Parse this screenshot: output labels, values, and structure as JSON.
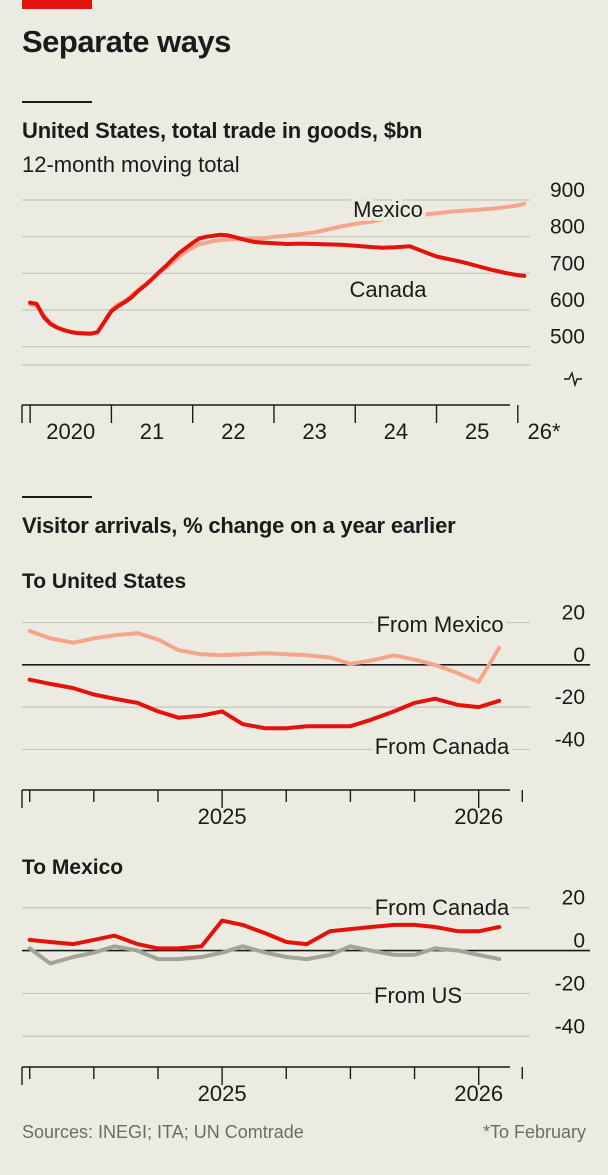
{
  "title": "Separate ways",
  "source": "Sources: INEGI; ITA; UN Comtrade",
  "footnote": "*To February",
  "colors": {
    "red": "#e3120b",
    "pink": "#f4a58a",
    "grey": "#a3a39a",
    "brand": "#e3120b"
  },
  "chart_data": [
    {
      "type": "line",
      "title": "United States, total trade in goods, $bn",
      "subtitle": "12-month moving total",
      "x_ticks": [
        "2020",
        "21",
        "22",
        "23",
        "24",
        "25",
        "26*"
      ],
      "ylim": [
        450,
        900
      ],
      "y_ticks": [
        500,
        600,
        700,
        800,
        900
      ],
      "axis_break": true,
      "series": [
        {
          "name": "Mexico",
          "color": "#f4a58a",
          "x": [
            2020.0,
            2020.08,
            2020.17,
            2020.25,
            2020.33,
            2020.42,
            2020.5,
            2020.58,
            2020.67,
            2020.75,
            2020.83,
            2020.92,
            2021.0,
            2021.08,
            2021.17,
            2021.25,
            2021.33,
            2021.42,
            2021.5,
            2021.58,
            2021.67,
            2021.75,
            2021.83,
            2021.92,
            2022.0,
            2022.08,
            2022.17,
            2022.25,
            2022.33,
            2022.42,
            2022.5,
            2022.58,
            2022.67,
            2022.75,
            2022.83,
            2022.92,
            2023.0,
            2023.17,
            2023.33,
            2023.5,
            2023.67,
            2023.83,
            2024.0,
            2024.17,
            2024.33,
            2024.5,
            2024.67,
            2024.83,
            2025.0,
            2025.17,
            2025.33,
            2025.5,
            2025.67,
            2025.83,
            2026.0,
            2026.08
          ],
          "y": [
            615,
            612,
            585,
            565,
            553,
            545,
            540,
            538,
            537,
            537,
            538,
            570,
            600,
            615,
            625,
            640,
            655,
            670,
            685,
            700,
            715,
            730,
            745,
            760,
            770,
            780,
            783,
            788,
            790,
            792,
            793,
            793,
            793,
            794,
            795,
            797,
            800,
            803,
            807,
            812,
            820,
            828,
            835,
            840,
            847,
            852,
            856,
            860,
            864,
            868,
            871,
            873,
            876,
            880,
            885,
            890
          ]
        },
        {
          "name": "Canada",
          "color": "#e3120b",
          "x": [
            2020.0,
            2020.08,
            2020.17,
            2020.25,
            2020.33,
            2020.42,
            2020.5,
            2020.58,
            2020.67,
            2020.75,
            2020.83,
            2020.92,
            2021.0,
            2021.08,
            2021.17,
            2021.25,
            2021.33,
            2021.42,
            2021.5,
            2021.58,
            2021.67,
            2021.75,
            2021.83,
            2021.92,
            2022.0,
            2022.08,
            2022.17,
            2022.25,
            2022.33,
            2022.42,
            2022.5,
            2022.58,
            2022.67,
            2022.75,
            2022.83,
            2022.92,
            2023.0,
            2023.17,
            2023.33,
            2023.5,
            2023.67,
            2023.83,
            2024.0,
            2024.17,
            2024.33,
            2024.5,
            2024.67,
            2024.83,
            2025.0,
            2025.17,
            2025.33,
            2025.5,
            2025.67,
            2025.83,
            2026.0,
            2026.08
          ],
          "y": [
            620,
            617,
            580,
            562,
            552,
            545,
            540,
            537,
            536,
            535,
            540,
            570,
            597,
            610,
            622,
            635,
            652,
            668,
            684,
            702,
            720,
            738,
            755,
            770,
            783,
            795,
            800,
            802,
            805,
            804,
            800,
            795,
            790,
            786,
            784,
            783,
            782,
            780,
            781,
            780,
            779,
            778,
            775,
            772,
            770,
            771,
            774,
            760,
            746,
            738,
            730,
            720,
            710,
            702,
            695,
            693
          ]
        }
      ]
    },
    {
      "type": "line",
      "section_title": "Visitor arrivals, % change on a year earlier",
      "title": "To United States",
      "x_ticks": [
        "2025",
        "2026"
      ],
      "ylim": [
        -45,
        25
      ],
      "y_ticks": [
        20,
        0,
        -20,
        -40
      ],
      "series": [
        {
          "name": "From Mexico",
          "color": "#f4a58a",
          "x": [
            2024.25,
            2024.33,
            2024.42,
            2024.5,
            2024.58,
            2024.67,
            2024.75,
            2024.83,
            2024.92,
            2025.0,
            2025.08,
            2025.17,
            2025.25,
            2025.33,
            2025.42,
            2025.5,
            2025.58,
            2025.67,
            2025.75,
            2025.83,
            2025.92,
            2026.0,
            2026.08
          ],
          "y": [
            16,
            12.5,
            10.5,
            12.5,
            14,
            15,
            12,
            7,
            5,
            4.5,
            5,
            5.5,
            5,
            4.5,
            3.5,
            0.5,
            2,
            4.5,
            2.5,
            0,
            -4,
            -8,
            8
          ]
        },
        {
          "name": "From Canada",
          "color": "#e3120b",
          "x": [
            2024.25,
            2024.33,
            2024.42,
            2024.5,
            2024.58,
            2024.67,
            2024.75,
            2024.83,
            2024.92,
            2025.0,
            2025.08,
            2025.17,
            2025.25,
            2025.33,
            2025.42,
            2025.5,
            2025.58,
            2025.67,
            2025.75,
            2025.83,
            2025.92,
            2026.0,
            2026.08
          ],
          "y": [
            -7,
            -9,
            -11,
            -14,
            -16,
            -18,
            -22,
            -25,
            -24,
            -22,
            -28,
            -30,
            -30,
            -29,
            -29,
            -29,
            -26,
            -22,
            -18,
            -16,
            -19,
            -20,
            -17
          ]
        }
      ]
    },
    {
      "type": "line",
      "title": "To Mexico",
      "x_ticks": [
        "2025",
        "2026"
      ],
      "ylim": [
        -45,
        25
      ],
      "y_ticks": [
        20,
        0,
        -20,
        -40
      ],
      "series": [
        {
          "name": "From Canada",
          "color": "#e3120b",
          "x": [
            2024.25,
            2024.33,
            2024.42,
            2024.5,
            2024.58,
            2024.67,
            2024.75,
            2024.83,
            2024.92,
            2025.0,
            2025.08,
            2025.17,
            2025.25,
            2025.33,
            2025.42,
            2025.5,
            2025.58,
            2025.67,
            2025.75,
            2025.83,
            2025.92,
            2026.0,
            2026.08
          ],
          "y": [
            5,
            4,
            3,
            5,
            7,
            3,
            1,
            1,
            2,
            14,
            12,
            8,
            4,
            3,
            9,
            10,
            11,
            12,
            12,
            11,
            9,
            9,
            11
          ]
        },
        {
          "name": "From US",
          "color": "#a3a39a",
          "x": [
            2024.25,
            2024.33,
            2024.42,
            2024.5,
            2024.58,
            2024.67,
            2024.75,
            2024.83,
            2024.92,
            2025.0,
            2025.08,
            2025.17,
            2025.25,
            2025.33,
            2025.42,
            2025.5,
            2025.58,
            2025.67,
            2025.75,
            2025.83,
            2025.92,
            2026.0,
            2026.08
          ],
          "y": [
            1,
            -6,
            -3,
            -1,
            2,
            0,
            -4,
            -4,
            -3,
            -1,
            2,
            -1,
            -3,
            -4,
            -2,
            2,
            0,
            -2,
            -2,
            1,
            0,
            -2,
            -4
          ]
        }
      ]
    }
  ]
}
